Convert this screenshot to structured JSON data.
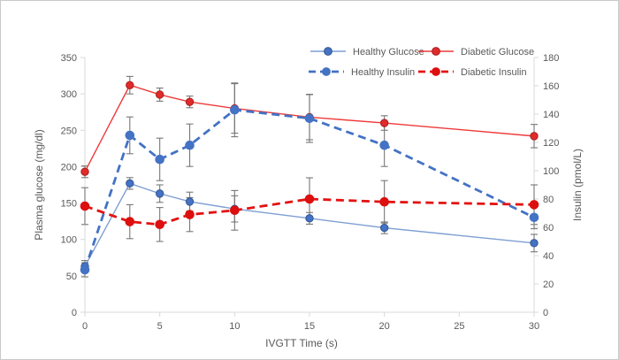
{
  "chart_data": {
    "type": "line",
    "title": "",
    "xlabel": "IVGTT Time (s)",
    "ylabel_left": "Plasma glucose (mg/dl)",
    "ylabel_right": "Insulin (pmol/L)",
    "x": [
      0,
      3,
      5,
      7,
      10,
      15,
      20,
      30
    ],
    "xlim": [
      0,
      30
    ],
    "x_ticks": [
      0,
      5,
      10,
      15,
      20,
      25,
      30
    ],
    "ylim_left": [
      0,
      350
    ],
    "y_ticks_left": [
      0,
      50,
      100,
      150,
      200,
      250,
      300,
      350
    ],
    "ylim_right": [
      0,
      180
    ],
    "y_ticks_right": [
      0,
      20,
      40,
      60,
      80,
      100,
      120,
      140,
      160,
      180
    ],
    "grid": false,
    "legend_position": "top",
    "series": [
      {
        "name": "Healthy Glucose",
        "axis": "left",
        "style": "solid",
        "color": "#7e9fd3",
        "marker_color": "#4472c4",
        "marker_edge": "#35568f",
        "values": [
          63,
          177,
          163,
          152,
          142,
          129,
          116,
          95
        ],
        "errors": [
          8,
          8,
          12,
          13,
          18,
          8,
          8,
          12
        ]
      },
      {
        "name": "Diabetic Glucose",
        "axis": "left",
        "style": "solid",
        "color": "#ee3a3a",
        "marker_color": "#e02b2b",
        "marker_edge": "#a81e1e",
        "values": [
          193,
          312,
          299,
          289,
          280,
          268,
          260,
          242
        ],
        "errors": [
          8,
          12,
          9,
          8,
          34,
          31,
          10,
          16
        ]
      },
      {
        "name": "Healthy Insulin",
        "axis": "right",
        "style": "dashed",
        "color": "#4472c4",
        "marker_color": "#4472c4",
        "marker_edge": "#4472c4",
        "values": [
          30,
          125,
          108,
          118,
          143,
          137,
          118,
          67
        ],
        "errors": [
          5,
          13,
          15,
          15,
          19,
          17,
          15,
          8
        ]
      },
      {
        "name": "Diabetic Insulin",
        "axis": "right",
        "style": "dashed",
        "color": "#e31212",
        "marker_color": "#dd0f0f",
        "marker_edge": "#dd0f0f",
        "values": [
          75,
          64,
          62,
          69,
          72,
          80,
          78,
          76
        ],
        "errors": [
          13,
          12,
          12,
          12,
          14,
          15,
          15,
          14
        ]
      }
    ]
  },
  "colors": {
    "text": "#595959",
    "spine": "#d9d9d9",
    "error_bar": "#777777",
    "background": "#ffffff",
    "frame_border": "#c9c9c9"
  }
}
